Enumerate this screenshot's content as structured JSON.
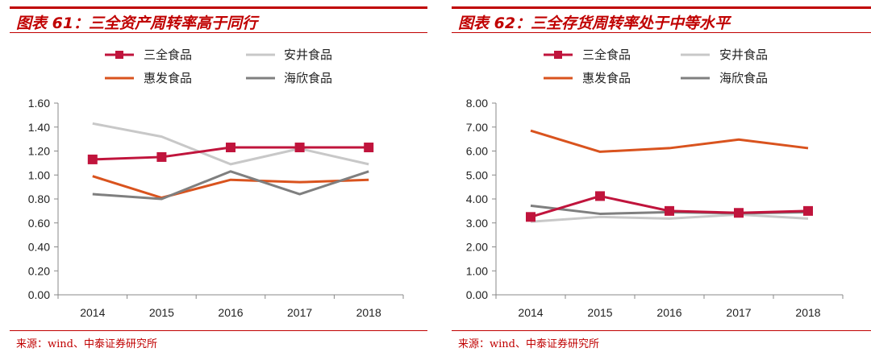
{
  "colors": {
    "accent": "#c00000",
    "sanquan": "#c0143c",
    "anjing": "#c8c8c8",
    "huifa": "#d9531e",
    "haixin": "#7f7f7f"
  },
  "panels": [
    {
      "title": "图表 61：三全资产周转率高于同行",
      "source": "来源：wind、中泰证券研究所"
    },
    {
      "title": "图表 62：三全存货周转率处于中等水平",
      "source": "来源：wind、中泰证券研究所"
    }
  ],
  "chart_data": [
    {
      "type": "line",
      "title": "",
      "categories": [
        "2014",
        "2015",
        "2016",
        "2017",
        "2018"
      ],
      "ylim": [
        0,
        1.6
      ],
      "yticks": [
        "0.00",
        "0.20",
        "0.40",
        "0.60",
        "0.80",
        "1.00",
        "1.20",
        "1.40",
        "1.60"
      ],
      "grid": false,
      "legend": "top",
      "series": [
        {
          "name": "三全食品",
          "color": "#c0143c",
          "marker": "square",
          "values": [
            1.13,
            1.15,
            1.23,
            1.23,
            1.23
          ]
        },
        {
          "name": "安井食品",
          "color": "#c8c8c8",
          "marker": "none",
          "values": [
            1.43,
            1.32,
            1.09,
            1.22,
            1.09
          ]
        },
        {
          "name": "惠发食品",
          "color": "#d9531e",
          "marker": "none",
          "values": [
            0.99,
            0.81,
            0.96,
            0.94,
            0.96
          ]
        },
        {
          "name": "海欣食品",
          "color": "#7f7f7f",
          "marker": "none",
          "values": [
            0.84,
            0.8,
            1.03,
            0.84,
            1.03
          ]
        }
      ]
    },
    {
      "type": "line",
      "title": "",
      "categories": [
        "2014",
        "2015",
        "2016",
        "2017",
        "2018"
      ],
      "ylim": [
        0,
        8
      ],
      "yticks": [
        "0.00",
        "1.00",
        "2.00",
        "3.00",
        "4.00",
        "5.00",
        "6.00",
        "7.00",
        "8.00"
      ],
      "grid": false,
      "legend": "top",
      "series": [
        {
          "name": "三全食品",
          "color": "#c0143c",
          "marker": "square",
          "values": [
            3.25,
            4.12,
            3.5,
            3.42,
            3.5
          ]
        },
        {
          "name": "安井食品",
          "color": "#c8c8c8",
          "marker": "none",
          "values": [
            3.05,
            3.25,
            3.18,
            3.35,
            3.18
          ]
        },
        {
          "name": "惠发食品",
          "color": "#d9531e",
          "marker": "none",
          "values": [
            6.85,
            5.97,
            6.12,
            6.48,
            6.12
          ]
        },
        {
          "name": "海欣食品",
          "color": "#7f7f7f",
          "marker": "none",
          "values": [
            3.72,
            3.38,
            3.45,
            3.4,
            3.45
          ]
        }
      ]
    }
  ]
}
